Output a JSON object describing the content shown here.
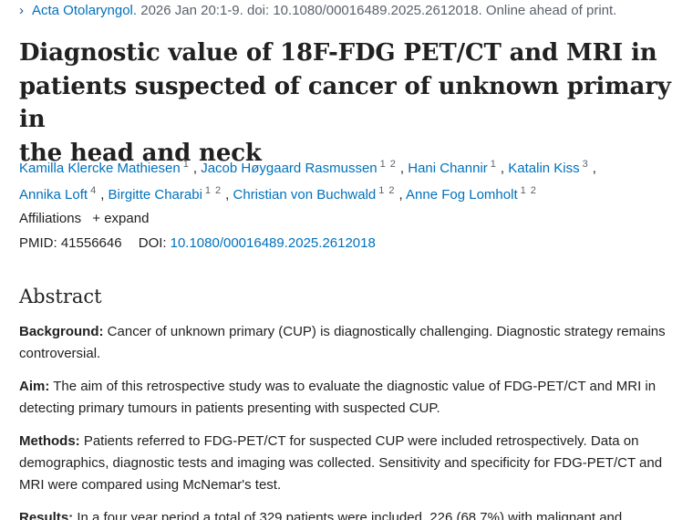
{
  "citation": {
    "journal": "Acta Otolaryngol.",
    "details": " 2026 Jan 20:1-9. doi: 10.1080/00016489.2025.2612018. Online ahead of print."
  },
  "title": {
    "line1": "Diagnostic value of 18F-FDG PET/CT and MRI in",
    "line2": "patients suspected of cancer of unknown primary in",
    "line3": "the head and neck"
  },
  "authors": [
    {
      "name": "Kamilla Klercke Mathiesen",
      "affils": [
        "1"
      ]
    },
    {
      "name": "Jacob Høygaard Rasmussen",
      "affils": [
        "1",
        "2"
      ]
    },
    {
      "name": "Hani Channir",
      "affils": [
        "1"
      ]
    },
    {
      "name": "Katalin Kiss",
      "affils": [
        "3"
      ]
    },
    {
      "name": "Annika Loft",
      "affils": [
        "4"
      ]
    },
    {
      "name": "Birgitte Charabi",
      "affils": [
        "1",
        "2"
      ]
    },
    {
      "name": "Christian von Buchwald",
      "affils": [
        "1",
        "2"
      ]
    },
    {
      "name": "Anne Fog Lomholt",
      "affils": [
        "1",
        "2"
      ]
    }
  ],
  "affiliations": {
    "label": "Affiliations",
    "expand_label": "expand"
  },
  "identifiers": {
    "pmid_label": "PMID:",
    "pmid": "41556646",
    "doi_label": "DOI:",
    "doi": "10.1080/00016489.2025.2612018"
  },
  "abstract": {
    "heading": "Abstract",
    "sections": [
      {
        "label": "Background:",
        "text": " Cancer of unknown primary (CUP) is diagnostically challenging. Diagnostic strategy remains controversial."
      },
      {
        "label": "Aim:",
        "text": " The aim of this retrospective study was to evaluate the diagnostic value of FDG-PET/CT and MRI in detecting primary tumours in patients presenting with suspected CUP."
      },
      {
        "label": "Methods:",
        "text": " Patients referred to FDG-PET/CT for suspected CUP were included retrospectively. Data on demographics, diagnostic tests and imaging was collected. Sensitivity and specificity for FDG-PET/CT and MRI were compared using McNemar's test."
      },
      {
        "label": "Results:",
        "text": " In a four year period a total of 329 patients were included, 226 (68.7%) with malignant and"
      }
    ]
  }
}
